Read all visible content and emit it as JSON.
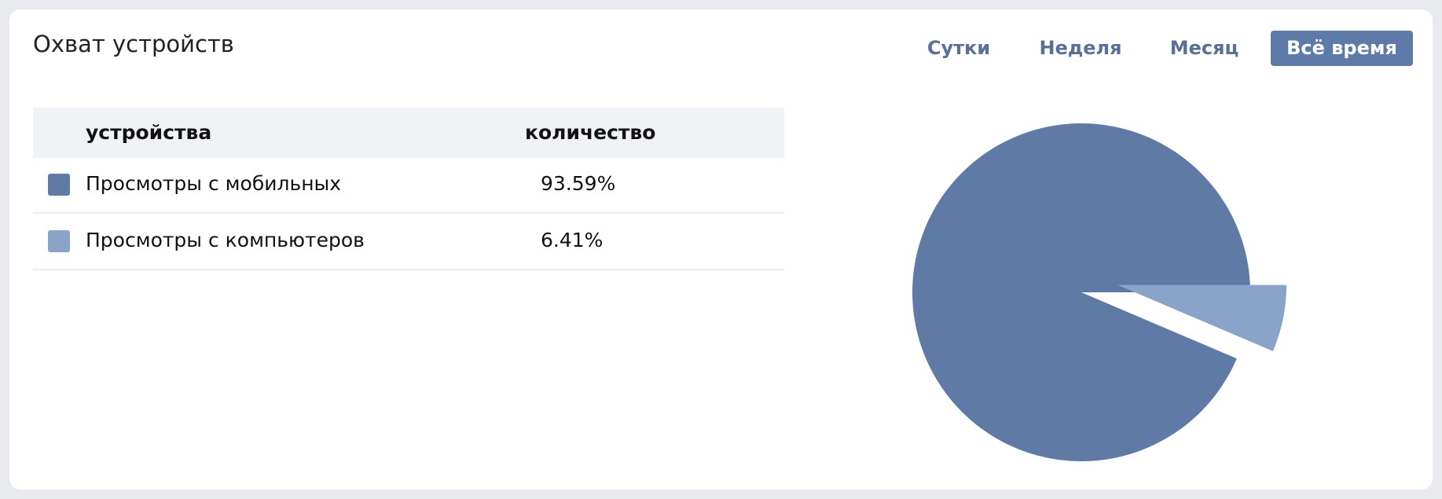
{
  "header": {
    "title": "Охват устройств"
  },
  "tabs": {
    "items": [
      "Сутки",
      "Неделя",
      "Месяц",
      "Всё время"
    ],
    "active": 3
  },
  "table": {
    "columns": [
      "устройства",
      "количество"
    ]
  },
  "chart_data": {
    "type": "pie",
    "categories": [
      "Просмотры с мобильных",
      "Просмотры с компьютеров"
    ],
    "values": [
      93.59,
      6.41
    ],
    "value_labels": [
      "93.59%",
      "6.41%"
    ],
    "colors": [
      "#5f7aa5",
      "#8aa3c9"
    ]
  }
}
